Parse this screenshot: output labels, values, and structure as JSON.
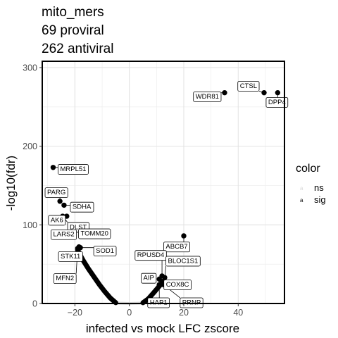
{
  "chart_data": {
    "type": "scatter",
    "title_lines": [
      "mito_mers",
      "69 proviral",
      "262 antiviral"
    ],
    "xlabel": "infected vs mock LFC zscore",
    "ylabel": "-log10(fdr)",
    "xlim": [
      -32,
      57
    ],
    "ylim": [
      0,
      308
    ],
    "x_ticks": [
      -20,
      0,
      20,
      40
    ],
    "x_tick_labels": [
      "−20",
      "0",
      "20",
      "40"
    ],
    "y_ticks": [
      0,
      100,
      200,
      300
    ],
    "y_tick_labels": [
      "0",
      "100",
      "200",
      "300"
    ],
    "grid": true,
    "legend": {
      "title": "color",
      "placement": "right",
      "entries": [
        {
          "label": "ns",
          "color": "#d9d9d9"
        },
        {
          "label": "sig",
          "color": "#000000"
        }
      ]
    },
    "colors": {
      "ns": "#d9d9d9",
      "sig": "#000000",
      "panel_border": "#000000",
      "grid": "#ebebeb"
    },
    "labeled_points": [
      {
        "label": "CTSL",
        "x": 49.5,
        "y": 268
      },
      {
        "label": "DPP4",
        "x": 54.5,
        "y": 268
      },
      {
        "label": "WDR81",
        "x": 35,
        "y": 268
      },
      {
        "label": "MRPL51",
        "x": -28,
        "y": 173
      },
      {
        "label": "PARG",
        "x": -25.5,
        "y": 130
      },
      {
        "label": "SDHA",
        "x": -24,
        "y": 125
      },
      {
        "label": "AK6",
        "x": -23,
        "y": 111
      },
      {
        "label": "DLST",
        "x": -24.5,
        "y": 111
      },
      {
        "label": "LARS2",
        "x": -21.5,
        "y": 99
      },
      {
        "label": "TOMM20",
        "x": -21,
        "y": 92
      },
      {
        "label": "STK11",
        "x": -18.5,
        "y": 72
      },
      {
        "label": "SOD1",
        "x": -18,
        "y": 71
      },
      {
        "label": "MFN2",
        "x": -19,
        "y": 70
      },
      {
        "label": "ABCB7",
        "x": 20,
        "y": 86
      },
      {
        "label": "RPUSD4",
        "x": 12,
        "y": 35
      },
      {
        "label": "BLOC1S1",
        "x": 13,
        "y": 33
      },
      {
        "label": "AIP",
        "x": 11,
        "y": 31
      },
      {
        "label": "COX8C",
        "x": 12,
        "y": 28
      },
      {
        "label": "HAP1",
        "x": 11,
        "y": 24
      },
      {
        "label": "PRNP",
        "x": 12.5,
        "y": 24
      }
    ],
    "curves": [
      {
        "group": "sig",
        "side": "left",
        "x": [
          -19,
          -17,
          -15,
          -13,
          -11,
          -9,
          -7,
          -5
        ],
        "y": [
          68,
          55,
          44,
          34,
          24,
          15,
          7,
          1
        ]
      },
      {
        "group": "sig",
        "side": "right",
        "x": [
          5,
          7,
          9,
          11,
          12.5
        ],
        "y": [
          1,
          6,
          14,
          22,
          28
        ]
      },
      {
        "group": "ns",
        "side": "center",
        "x": [
          -5,
          -2,
          0,
          2,
          5
        ],
        "y": [
          0.5,
          0.2,
          0,
          0.2,
          0.5
        ]
      }
    ]
  }
}
